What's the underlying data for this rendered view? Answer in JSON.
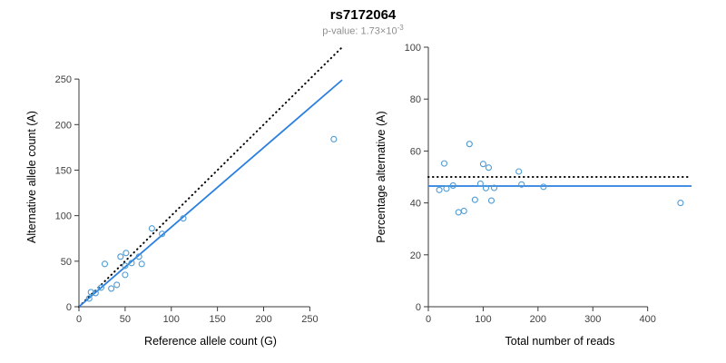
{
  "header": {
    "title": "rs7172064",
    "subtitle_base": "p-value: 1.73×10",
    "subtitle_exp": "-3"
  },
  "colors": {
    "point": "#4e9bd4",
    "line": "#2a7fe0",
    "dashed": "#000000",
    "axis": "#3a3a3a",
    "tick_label": "#404040",
    "axis_title": "#000000",
    "subtitle": "#8f8f8f"
  },
  "chart_data": [
    {
      "type": "scatter",
      "title": "",
      "xlabel": "Reference allele count (G)",
      "ylabel": "Alternative allele count (A)",
      "xlim": [
        0,
        285
      ],
      "ylim": [
        0,
        285
      ],
      "xticks": [
        0,
        50,
        100,
        150,
        200,
        250
      ],
      "yticks": [
        0,
        50,
        100,
        150,
        200,
        250
      ],
      "grid": false,
      "legend": "none",
      "points": [
        [
          11,
          9
        ],
        [
          13,
          16
        ],
        [
          18,
          15
        ],
        [
          24,
          21
        ],
        [
          35,
          20
        ],
        [
          41,
          24
        ],
        [
          28,
          47
        ],
        [
          50,
          35
        ],
        [
          50,
          45
        ],
        [
          45,
          55
        ],
        [
          57,
          48
        ],
        [
          51,
          59
        ],
        [
          68,
          47
        ],
        [
          65,
          55
        ],
        [
          79,
          86
        ],
        [
          90,
          80
        ],
        [
          113,
          97
        ],
        [
          276,
          184
        ]
      ],
      "lines": [
        {
          "name": "identity-line",
          "style": "dotted",
          "color": "black",
          "x1": 0,
          "y1": 0,
          "x2": 285,
          "y2": 285
        },
        {
          "name": "regression-line",
          "style": "solid",
          "color": "blue",
          "x1": 0,
          "y1": 0,
          "x2": 285,
          "y2": 249
        }
      ]
    },
    {
      "type": "scatter",
      "title": "",
      "xlabel": "Total number of reads",
      "ylabel": "Percentage alternative (A)",
      "xlim": [
        0,
        480
      ],
      "ylim": [
        0,
        100
      ],
      "xticks": [
        0,
        100,
        200,
        300,
        400
      ],
      "yticks": [
        0,
        20,
        40,
        60,
        80,
        100
      ],
      "grid": false,
      "legend": "none",
      "points": [
        [
          20,
          45.0
        ],
        [
          29,
          55.2
        ],
        [
          33,
          45.5
        ],
        [
          45,
          46.7
        ],
        [
          55,
          36.4
        ],
        [
          65,
          36.9
        ],
        [
          75,
          62.7
        ],
        [
          85,
          41.2
        ],
        [
          95,
          47.4
        ],
        [
          100,
          55.0
        ],
        [
          105,
          45.7
        ],
        [
          110,
          53.6
        ],
        [
          115,
          40.9
        ],
        [
          120,
          45.8
        ],
        [
          165,
          52.1
        ],
        [
          170,
          47.1
        ],
        [
          210,
          46.2
        ],
        [
          460,
          40.0
        ]
      ],
      "lines": [
        {
          "name": "expected-50pct-line",
          "style": "dotted",
          "color": "black",
          "x1": 0,
          "y1": 50,
          "x2": 480,
          "y2": 50
        },
        {
          "name": "observed-mean-line",
          "style": "solid",
          "color": "blue",
          "x1": 0,
          "y1": 46.5,
          "x2": 480,
          "y2": 46.5
        }
      ]
    }
  ]
}
